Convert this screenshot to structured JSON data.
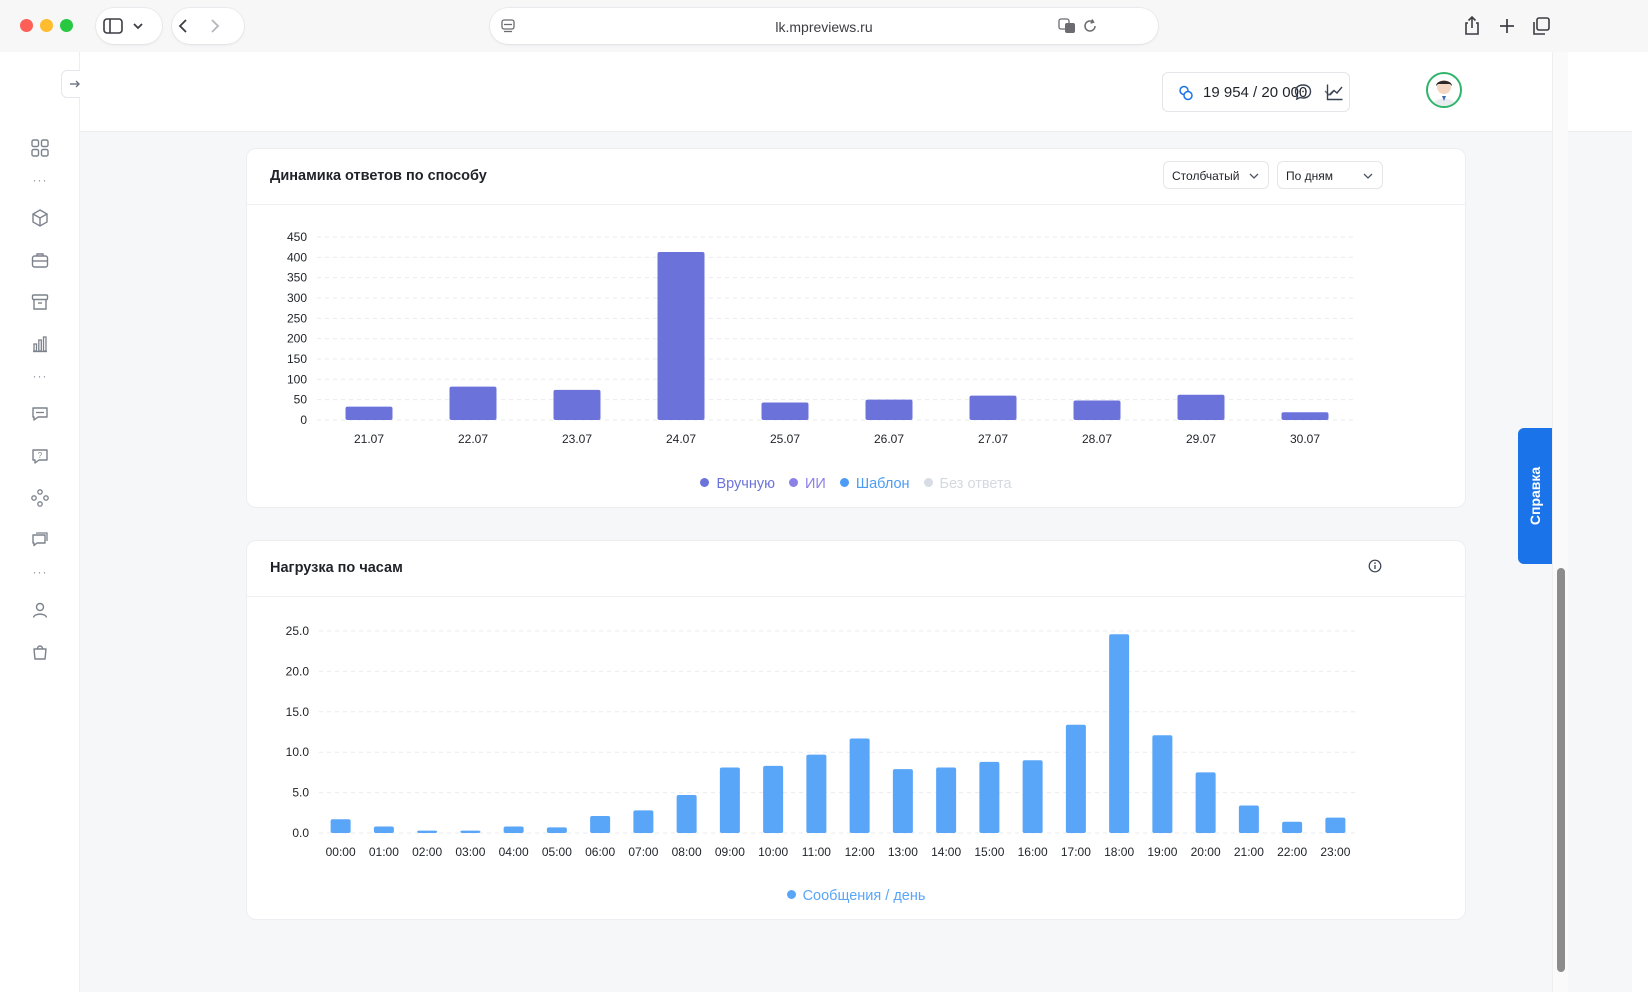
{
  "browser": {
    "url": "lk.mpreviews.ru",
    "colors": {
      "close": "#fe5f57",
      "minimize": "#febc2e",
      "zoom": "#28c840"
    }
  },
  "sidebar": {
    "icons": [
      "grid-icon",
      "cube-icon",
      "briefcase-icon",
      "archive-icon",
      "bar-chart-icon",
      "chat-icon",
      "question-icon",
      "nodes-icon",
      "messages-icon",
      "user-icon",
      "bag-icon"
    ]
  },
  "header": {
    "quota_text": "19 954 / 20 000"
  },
  "help": {
    "label": "Справка"
  },
  "card1": {
    "title": "Динамика ответов по способу",
    "chart_type_select": "Столбчатый",
    "period_select": "По дням"
  },
  "card2": {
    "title": "Нагрузка по часам"
  },
  "chart_data": [
    {
      "type": "bar",
      "title": "Динамика ответов по способу",
      "categories": [
        "21.07",
        "22.07",
        "23.07",
        "24.07",
        "25.07",
        "26.07",
        "27.07",
        "28.07",
        "29.07",
        "30.07"
      ],
      "series": [
        {
          "name": "Вручную",
          "values": [
            33,
            82,
            74,
            413,
            43,
            50,
            60,
            48,
            62,
            19
          ],
          "color": "#6b73db"
        },
        {
          "name": "ИИ",
          "values": [
            0,
            0,
            0,
            0,
            0,
            0,
            0,
            0,
            0,
            0
          ],
          "color": "#8b80e6"
        },
        {
          "name": "Шаблон",
          "values": [
            0,
            0,
            0,
            0,
            0,
            0,
            0,
            0,
            0,
            0
          ],
          "color": "#4c9cf5"
        },
        {
          "name": "Без ответа",
          "values": [
            0,
            0,
            0,
            0,
            0,
            0,
            0,
            0,
            0,
            0
          ],
          "color": "#d7dce5",
          "hidden": true
        }
      ],
      "yticks": [
        0,
        50,
        100,
        150,
        200,
        250,
        300,
        350,
        400,
        450
      ],
      "ylim": [
        0,
        450
      ],
      "grid": true,
      "legend": "bottom"
    },
    {
      "type": "bar",
      "title": "Нагрузка по часам",
      "categories": [
        "00:00",
        "01:00",
        "02:00",
        "03:00",
        "04:00",
        "05:00",
        "06:00",
        "07:00",
        "08:00",
        "09:00",
        "10:00",
        "11:00",
        "12:00",
        "13:00",
        "14:00",
        "15:00",
        "16:00",
        "17:00",
        "18:00",
        "19:00",
        "20:00",
        "21:00",
        "22:00",
        "23:00"
      ],
      "series": [
        {
          "name": "Сообщения / день",
          "values": [
            1.7,
            0.8,
            0.3,
            0.3,
            0.8,
            0.7,
            2.1,
            2.8,
            4.7,
            8.1,
            8.3,
            9.7,
            11.7,
            7.9,
            8.1,
            8.8,
            9.0,
            13.4,
            24.6,
            12.1,
            7.5,
            3.4,
            1.4,
            1.9
          ],
          "color": "#59a5f8"
        }
      ],
      "yticks": [
        "0.0",
        "5.0",
        "10.0",
        "15.0",
        "20.0",
        "25.0"
      ],
      "ylim": [
        0,
        25
      ],
      "grid": true,
      "legend": "bottom"
    }
  ]
}
